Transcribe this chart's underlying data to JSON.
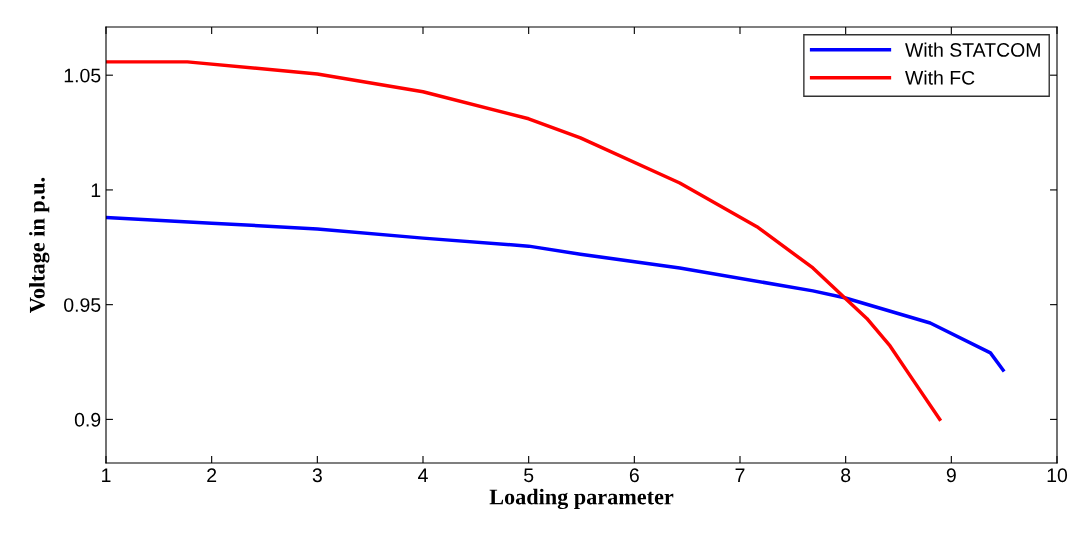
{
  "chart_data": {
    "type": "line",
    "xlabel": "Loading parameter",
    "ylabel": "Voltage in p.u.",
    "xlim": [
      1,
      10
    ],
    "xticks": [
      1,
      2,
      3,
      4,
      5,
      6,
      7,
      8,
      9,
      10
    ],
    "ylim": [
      0.881,
      1.071
    ],
    "yticks": [
      0.9,
      0.95,
      1,
      1.05
    ],
    "grid": false,
    "legend": "top right",
    "marker": "none",
    "line_style": "solid",
    "series": [
      {
        "name": "With STATCOM",
        "color": "#0000ff",
        "x": [
          1,
          2,
          3,
          4,
          5,
          5.49,
          6.43,
          7.69,
          7.99,
          8.8,
          9.37,
          9.49
        ],
        "values": [
          0.988,
          0.9855,
          0.983,
          0.979,
          0.9755,
          0.972,
          0.966,
          0.956,
          0.953,
          0.942,
          0.929,
          0.9215
        ]
      },
      {
        "name": "With FC",
        "color": "#ff0000",
        "x": [
          1,
          1.77,
          3,
          4,
          5,
          5.49,
          6.43,
          7.16,
          7.69,
          7.99,
          8.2,
          8.42,
          8.64,
          8.89
        ],
        "values": [
          1.0558,
          1.0558,
          1.0505,
          1.0428,
          1.031,
          1.0227,
          1.003,
          0.984,
          0.966,
          0.953,
          0.944,
          0.932,
          0.917,
          0.9
        ]
      }
    ]
  }
}
